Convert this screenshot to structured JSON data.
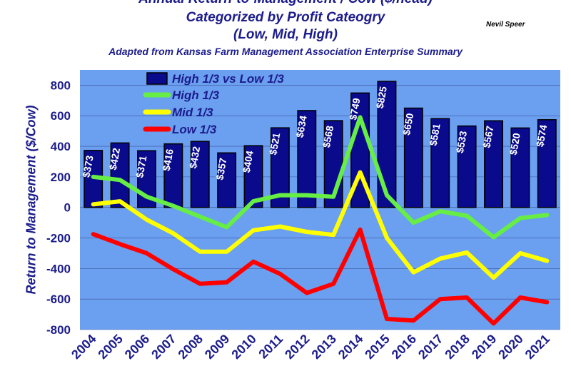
{
  "title": {
    "line1": "Annual Return-to-Management / Cow ($/head)",
    "line2": "Categorized by Profit Cateogry",
    "line3": "(Low, Mid, High)",
    "subtitle": "Adapted from Kansas Farm Management Association Enterprise Summary"
  },
  "author": "Nevil Speer",
  "chart_data": {
    "type": "bar",
    "title": "Annual Return-to-Management / Cow ($/head)",
    "ylabel": "Return to Management ($/Cow)",
    "xlabel": "",
    "ylim": [
      -800,
      900
    ],
    "yticks": [
      800,
      600,
      400,
      200,
      0,
      -200,
      -400,
      -600,
      -800
    ],
    "grid": true,
    "legend": "top-left",
    "categories": [
      "2004",
      "2005",
      "2006",
      "2007",
      "2008",
      "2009",
      "2010",
      "2011",
      "2012",
      "2013",
      "2014",
      "2015",
      "2016",
      "2017",
      "2018",
      "2019",
      "2020",
      "2021"
    ],
    "series": [
      {
        "name": "High 1/3 vs Low 1/3",
        "kind": "bar",
        "color": "#0a0a8c",
        "values": [
          373,
          422,
          371,
          416,
          432,
          357,
          404,
          521,
          634,
          568,
          749,
          825,
          650,
          581,
          533,
          567,
          520,
          574
        ],
        "labels": [
          "$373",
          "$422",
          "$371",
          "$416",
          "$432",
          "$357",
          "$404",
          "$521",
          "$634",
          "$568",
          "$749",
          "$825",
          "$650",
          "$581",
          "$533",
          "$567",
          "$520",
          "$574"
        ]
      },
      {
        "name": "High 1/3",
        "kind": "line",
        "color": "#66ee44",
        "values": [
          200,
          180,
          70,
          10,
          -60,
          -130,
          40,
          80,
          80,
          70,
          590,
          80,
          -100,
          -25,
          -55,
          -195,
          -70,
          -50
        ]
      },
      {
        "name": "Mid 1/3",
        "kind": "line",
        "color": "#ffff00",
        "values": [
          20,
          40,
          -80,
          -170,
          -290,
          -290,
          -150,
          -125,
          -160,
          -180,
          230,
          -200,
          -425,
          -335,
          -295,
          -460,
          -300,
          -350
        ]
      },
      {
        "name": "Low 1/3",
        "kind": "line",
        "color": "#ff0000",
        "values": [
          -175,
          -240,
          -300,
          -405,
          -500,
          -490,
          -355,
          -435,
          -560,
          -500,
          -145,
          -730,
          -740,
          -600,
          -590,
          -760,
          -590,
          -620
        ]
      }
    ]
  },
  "colors": {
    "plot_background": "#6b9ff0",
    "text": "#1c1c8c",
    "gridline": "#1a1a5a"
  }
}
